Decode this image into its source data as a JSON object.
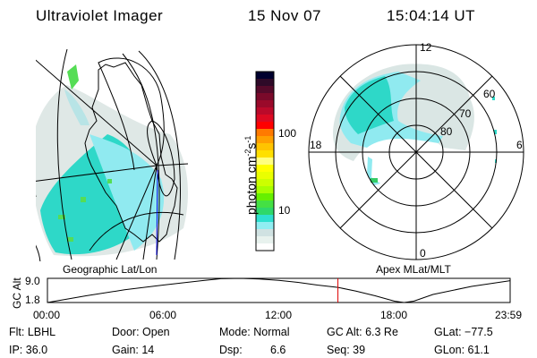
{
  "header": {
    "instrument": "Ultraviolet Imager",
    "date": "15 Nov 07",
    "time": "15:04:14 UT"
  },
  "map_panel": {
    "label": "Geographic Lat/Lon"
  },
  "polar_panel": {
    "label": "Apex MLat/MLT",
    "mlt_labels": [
      "12",
      "18",
      "6",
      "0"
    ],
    "mlat_labels": [
      "60",
      "70",
      "80"
    ]
  },
  "colorbar": {
    "unit_label": "photon cm",
    "unit_sup1": "-2",
    "unit_mid": "s",
    "unit_sup2": "-1",
    "ticks": [
      "100",
      "10"
    ],
    "colors": [
      "#00002e",
      "#2e0a28",
      "#550a2a",
      "#7a0a2a",
      "#9a0a2a",
      "#bb0a2a",
      "#dd0a22",
      "#ff0000",
      "#ff7a00",
      "#ffa000",
      "#ffc400",
      "#ffe000",
      "#ffff80",
      "#ffff00",
      "#eaff00",
      "#ccff00",
      "#a8ff00",
      "#66f000",
      "#44e044",
      "#2ed86a",
      "#2ee0d0",
      "#90eef2",
      "#d0e2e2",
      "#e8f2ee",
      "#ffffff"
    ]
  },
  "altitude_plot": {
    "ylabel": "GC Alt",
    "yticks": [
      "9.0",
      "1.8"
    ],
    "xticks": [
      "00:00",
      "06:00",
      "12:00",
      "18:00",
      "23:59"
    ],
    "current_time_color": "#dd0000",
    "chart_data": {
      "type": "line",
      "x_hours": [
        0,
        2,
        4,
        6,
        8,
        9,
        10,
        11,
        12,
        13,
        14,
        15.07,
        16,
        17,
        18,
        18.5,
        19,
        20,
        22,
        24
      ],
      "y_re": [
        1.8,
        3.8,
        5.6,
        7.0,
        8.3,
        8.9,
        9.0,
        8.8,
        8.4,
        7.8,
        7.0,
        6.3,
        5.2,
        3.8,
        2.2,
        1.8,
        2.2,
        4.2,
        6.6,
        8.3
      ],
      "ylim": [
        1.8,
        9.0
      ],
      "current_time": "15:04"
    }
  },
  "info": {
    "filter": "Flt: LBHL",
    "ip": "IP: 36.0",
    "door": "Door: Open",
    "gain": "Gain: 14",
    "mode": "Mode: Normal",
    "dsp_label": "Dsp:",
    "dsp_value": "6.6",
    "gc_alt": "GC Alt: 6.3 Re",
    "seq": "Seq: 39",
    "glat": "GLat: −77.5",
    "glon": "GLon:  61.1"
  }
}
